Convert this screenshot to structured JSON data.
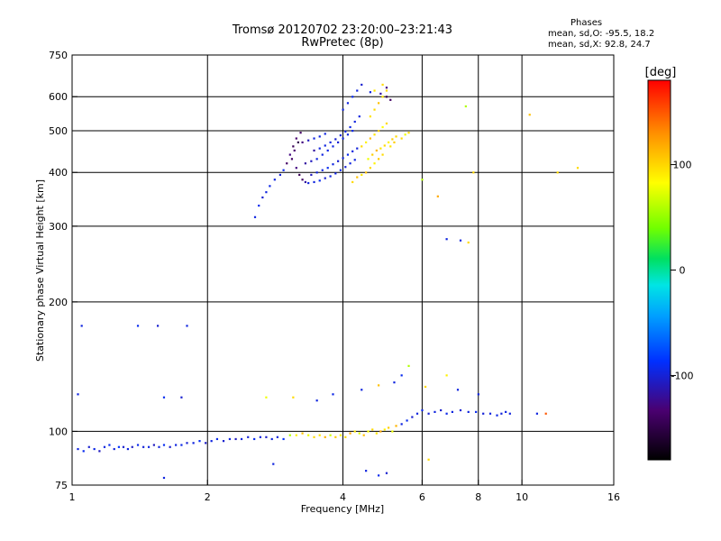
{
  "header": {
    "title_line1": "Tromsø 20120702 23:20:00–23:21:43",
    "title_line2": "RwPretec (8p)"
  },
  "phase_box": {
    "heading": "Phases",
    "line1": "mean, sd,O: -95.5, 18.2",
    "line2": "mean, sd,X:  92.8, 24.7"
  },
  "chart_data": {
    "type": "scatter",
    "title": "Tromsø 20120702 23:20:00–23:21:43",
    "subtitle": "RwPretec (8p)",
    "xlabel": "Frequency [MHz]",
    "ylabel": "Stationary phase Virtual Height [km]",
    "x_scale": "log",
    "y_scale": "log",
    "xlim": [
      1,
      16
    ],
    "ylim": [
      75,
      750
    ],
    "x_ticks": [
      1,
      2,
      4,
      6,
      8,
      10,
      16
    ],
    "x_tick_labels": [
      "1",
      "2",
      "4",
      "6",
      "8",
      "10",
      "16"
    ],
    "y_ticks": [
      75,
      100,
      200,
      300,
      400,
      500,
      600,
      750
    ],
    "y_tick_labels": [
      "75",
      "100",
      "200",
      "300",
      "400",
      "500",
      "600",
      "750"
    ],
    "x_grid": [
      2,
      4,
      6,
      8,
      10
    ],
    "y_grid": [
      100,
      200,
      300,
      400,
      500,
      600
    ],
    "grid": true,
    "colorbar": {
      "label": "[deg]",
      "range": [
        -180,
        180
      ],
      "ticks": [
        100,
        0,
        -100
      ],
      "tick_labels": [
        "100",
        "0",
        "-100"
      ]
    },
    "series": [
      {
        "points": [
          [
            1.03,
            91,
            -100
          ],
          [
            1.06,
            90,
            -95
          ],
          [
            1.09,
            92,
            -105
          ],
          [
            1.12,
            91,
            -98
          ],
          [
            1.15,
            90,
            -110
          ],
          [
            1.18,
            92,
            -100
          ],
          [
            1.21,
            93,
            -95
          ],
          [
            1.24,
            91,
            -102
          ],
          [
            1.27,
            92,
            -90
          ],
          [
            1.3,
            92,
            -105
          ],
          [
            1.33,
            91,
            -100
          ],
          [
            1.36,
            92,
            -108
          ],
          [
            1.4,
            93,
            -96
          ],
          [
            1.44,
            92,
            -103
          ],
          [
            1.48,
            92,
            -99
          ],
          [
            1.52,
            93,
            -110
          ],
          [
            1.56,
            92,
            -101
          ],
          [
            1.6,
            93,
            -94
          ],
          [
            1.65,
            92,
            -106
          ],
          [
            1.7,
            93,
            -100
          ],
          [
            1.75,
            93,
            -97
          ],
          [
            1.8,
            94,
            -104
          ],
          [
            1.86,
            94,
            -100
          ],
          [
            1.92,
            95,
            -93
          ],
          [
            1.98,
            94,
            -108
          ],
          [
            2.04,
            95,
            -100
          ],
          [
            2.1,
            96,
            -96
          ],
          [
            2.17,
            95,
            -105
          ],
          [
            2.24,
            96,
            -100
          ],
          [
            2.31,
            96,
            -110
          ],
          [
            2.38,
            96,
            -98
          ],
          [
            2.46,
            97,
            -103
          ],
          [
            2.54,
            96,
            -94
          ],
          [
            2.62,
            97,
            -100
          ],
          [
            2.7,
            97,
            -107
          ],
          [
            2.78,
            96,
            -99
          ],
          [
            2.86,
            97,
            -101
          ],
          [
            2.95,
            96,
            -90
          ],
          [
            3.05,
            98,
            60
          ],
          [
            3.15,
            98,
            90
          ],
          [
            3.25,
            99,
            110
          ],
          [
            3.35,
            98,
            80
          ],
          [
            3.45,
            97,
            100
          ],
          [
            3.55,
            98,
            95
          ],
          [
            3.65,
            97,
            115
          ],
          [
            3.75,
            98,
            70
          ],
          [
            3.85,
            97,
            105
          ],
          [
            3.95,
            98,
            88
          ],
          [
            4.05,
            97,
            100
          ],
          [
            4.15,
            99,
            120
          ],
          [
            4.25,
            100,
            95
          ],
          [
            4.35,
            99,
            75
          ],
          [
            4.45,
            98,
            110
          ],
          [
            4.55,
            100,
            85
          ],
          [
            4.65,
            101,
            100
          ],
          [
            4.75,
            99,
            95
          ],
          [
            4.85,
            100,
            120
          ],
          [
            4.95,
            101,
            90
          ],
          [
            5.05,
            102,
            105
          ],
          [
            5.15,
            100,
            80
          ],
          [
            5.25,
            103,
            115
          ],
          [
            5.4,
            104,
            -100
          ],
          [
            5.55,
            106,
            -95
          ],
          [
            5.7,
            108,
            -105
          ],
          [
            5.85,
            110,
            -100
          ],
          [
            6.0,
            112,
            -98
          ],
          [
            6.2,
            110,
            -103
          ],
          [
            6.4,
            111,
            -100
          ],
          [
            6.6,
            112,
            -106
          ],
          [
            6.8,
            110,
            -97
          ],
          [
            7.0,
            111,
            -100
          ],
          [
            7.3,
            112,
            -104
          ],
          [
            7.6,
            111,
            -100
          ],
          [
            7.9,
            111,
            -96
          ],
          [
            8.2,
            110,
            -103
          ],
          [
            8.5,
            110,
            -100
          ],
          [
            8.8,
            109,
            -98
          ],
          [
            9.0,
            110,
            -102
          ],
          [
            9.2,
            111,
            -99
          ],
          [
            9.4,
            110,
            -101
          ],
          [
            1.05,
            176,
            -100
          ],
          [
            1.4,
            176,
            -95
          ],
          [
            1.55,
            176,
            -105
          ],
          [
            1.8,
            176,
            -100
          ],
          [
            1.03,
            122,
            -100
          ],
          [
            1.6,
            120,
            -95
          ],
          [
            1.75,
            120,
            -105
          ],
          [
            2.7,
            120,
            80
          ],
          [
            3.1,
            120,
            100
          ],
          [
            3.5,
            118,
            -100
          ],
          [
            3.8,
            122,
            -98
          ],
          [
            4.4,
            125,
            -100
          ],
          [
            4.8,
            128,
            110
          ],
          [
            5.2,
            130,
            -100
          ],
          [
            5.4,
            135,
            -95
          ],
          [
            5.6,
            142,
            60
          ],
          [
            6.1,
            127,
            100
          ],
          [
            6.8,
            135,
            90
          ],
          [
            7.2,
            125,
            -100
          ],
          [
            8.0,
            122,
            -100
          ],
          [
            10.8,
            110,
            -100
          ],
          [
            11.3,
            110,
            150
          ],
          [
            4.5,
            81,
            -100
          ],
          [
            4.8,
            79,
            -95
          ],
          [
            5.0,
            80,
            -105
          ],
          [
            6.2,
            86,
            100
          ],
          [
            1.6,
            78,
            -100
          ],
          [
            2.8,
            84,
            -100
          ],
          [
            2.55,
            315,
            -100
          ],
          [
            2.6,
            335,
            -95
          ],
          [
            2.65,
            350,
            -105
          ],
          [
            2.7,
            360,
            -100
          ],
          [
            2.75,
            372,
            -98
          ],
          [
            2.82,
            385,
            -100
          ],
          [
            2.9,
            395,
            -102
          ],
          [
            2.95,
            405,
            -96
          ],
          [
            3.0,
            420,
            -140
          ],
          [
            3.05,
            440,
            -130
          ],
          [
            3.1,
            460,
            -145
          ],
          [
            3.15,
            480,
            -135
          ],
          [
            3.22,
            495,
            -140
          ],
          [
            3.18,
            470,
            -150
          ],
          [
            3.12,
            450,
            -135
          ],
          [
            3.08,
            430,
            -140
          ],
          [
            3.15,
            410,
            -130
          ],
          [
            3.2,
            395,
            -145
          ],
          [
            3.25,
            385,
            -140
          ],
          [
            3.3,
            380,
            -120
          ],
          [
            3.35,
            378,
            -100
          ],
          [
            3.45,
            380,
            -100
          ],
          [
            3.55,
            383,
            -95
          ],
          [
            3.65,
            388,
            -105
          ],
          [
            3.75,
            392,
            -100
          ],
          [
            3.85,
            398,
            -100
          ],
          [
            3.95,
            405,
            -96
          ],
          [
            4.05,
            412,
            -104
          ],
          [
            4.15,
            420,
            -100
          ],
          [
            4.25,
            428,
            -100
          ],
          [
            3.4,
            395,
            -110
          ],
          [
            3.5,
            400,
            -100
          ],
          [
            3.6,
            405,
            -100
          ],
          [
            3.7,
            410,
            -95
          ],
          [
            3.8,
            418,
            -100
          ],
          [
            3.9,
            425,
            -105
          ],
          [
            4.0,
            432,
            -100
          ],
          [
            4.1,
            440,
            -96
          ],
          [
            4.2,
            448,
            -100
          ],
          [
            4.3,
            455,
            -102
          ],
          [
            3.3,
            420,
            -120
          ],
          [
            3.4,
            425,
            -110
          ],
          [
            3.5,
            430,
            -100
          ],
          [
            3.6,
            440,
            -100
          ],
          [
            3.7,
            450,
            -98
          ],
          [
            3.8,
            460,
            -100
          ],
          [
            3.9,
            470,
            -104
          ],
          [
            4.0,
            480,
            -100
          ],
          [
            4.1,
            490,
            -100
          ],
          [
            4.2,
            500,
            -96
          ],
          [
            3.45,
            450,
            -120
          ],
          [
            3.55,
            455,
            -100
          ],
          [
            3.65,
            462,
            -100
          ],
          [
            3.75,
            470,
            -100
          ],
          [
            3.85,
            478,
            -105
          ],
          [
            3.95,
            488,
            -100
          ],
          [
            4.05,
            498,
            -100
          ],
          [
            4.15,
            510,
            -98
          ],
          [
            4.25,
            525,
            -100
          ],
          [
            4.35,
            540,
            -100
          ],
          [
            3.25,
            470,
            -130
          ],
          [
            3.35,
            475,
            -110
          ],
          [
            3.45,
            480,
            -100
          ],
          [
            3.55,
            485,
            -100
          ],
          [
            3.65,
            492,
            -100
          ],
          [
            4.0,
            560,
            -100
          ],
          [
            4.1,
            580,
            -100
          ],
          [
            4.2,
            600,
            -95
          ],
          [
            4.3,
            620,
            -100
          ],
          [
            4.4,
            640,
            -105
          ],
          [
            4.4,
            460,
            100
          ],
          [
            4.5,
            470,
            90
          ],
          [
            4.6,
            480,
            110
          ],
          [
            4.7,
            490,
            95
          ],
          [
            4.8,
            500,
            105
          ],
          [
            4.9,
            510,
            85
          ],
          [
            5.0,
            520,
            100
          ],
          [
            4.55,
            430,
            80
          ],
          [
            4.65,
            440,
            105
          ],
          [
            4.75,
            450,
            115
          ],
          [
            4.85,
            455,
            95
          ],
          [
            4.95,
            462,
            100
          ],
          [
            5.05,
            470,
            90
          ],
          [
            5.15,
            478,
            105
          ],
          [
            5.25,
            485,
            100
          ],
          [
            4.6,
            540,
            95
          ],
          [
            4.7,
            560,
            100
          ],
          [
            4.8,
            580,
            110
          ],
          [
            4.9,
            600,
            95
          ],
          [
            5.0,
            620,
            100
          ],
          [
            4.5,
            400,
            110
          ],
          [
            4.6,
            410,
            100
          ],
          [
            4.7,
            420,
            90
          ],
          [
            4.8,
            430,
            105
          ],
          [
            4.9,
            440,
            100
          ],
          [
            5.1,
            460,
            95
          ],
          [
            5.2,
            470,
            105
          ],
          [
            5.4,
            480,
            100
          ],
          [
            5.5,
            490,
            80
          ],
          [
            5.6,
            495,
            100
          ],
          [
            4.2,
            380,
            100
          ],
          [
            4.3,
            390,
            110
          ],
          [
            4.4,
            395,
            95
          ],
          [
            4.7,
            620,
            95
          ],
          [
            4.9,
            640,
            100
          ],
          [
            5.0,
            600,
            -150
          ],
          [
            5.1,
            590,
            -140
          ],
          [
            5.0,
            630,
            -130
          ],
          [
            4.85,
            610,
            -120
          ],
          [
            4.6,
            615,
            -100
          ],
          [
            6.0,
            385,
            60
          ],
          [
            6.5,
            352,
            120
          ],
          [
            6.8,
            280,
            -100
          ],
          [
            7.3,
            278,
            -100
          ],
          [
            7.6,
            275,
            100
          ],
          [
            7.8,
            400,
            100
          ],
          [
            7.5,
            570,
            60
          ],
          [
            10.4,
            545,
            110
          ],
          [
            12.0,
            400,
            100
          ],
          [
            13.3,
            410,
            100
          ]
        ]
      }
    ]
  }
}
